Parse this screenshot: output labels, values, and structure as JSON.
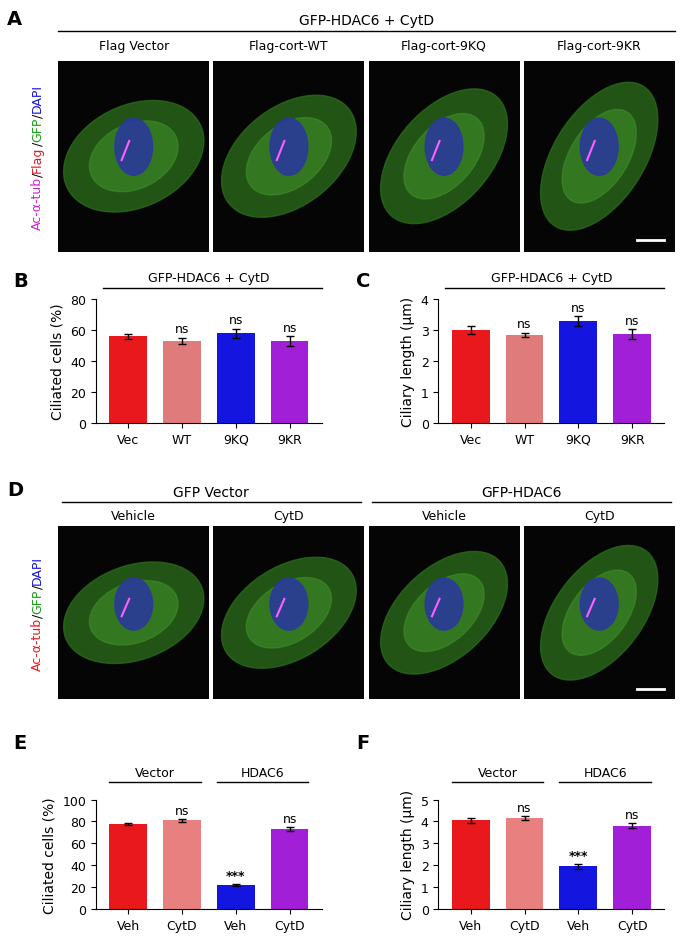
{
  "chart_data": [
    {
      "type": "bar",
      "panel_label": "B",
      "title": "GFP-HDAC6 + CytD",
      "categories": [
        "Vec",
        "WT",
        "9KQ",
        "9KR"
      ],
      "values": [
        56,
        53,
        58,
        53
      ],
      "error": [
        1.5,
        2,
        3,
        3
      ],
      "colors": [
        "#e8181d",
        "#e07b7b",
        "#1515e0",
        "#a21fd8"
      ],
      "y_label": "Ciliated cells (%)",
      "ylim": [
        0,
        80
      ],
      "yticks": [
        0,
        20,
        40,
        60,
        80
      ],
      "annotations": [
        null,
        "ns",
        "ns",
        "ns"
      ]
    },
    {
      "type": "bar",
      "panel_label": "C",
      "title": "GFP-HDAC6 + CytD",
      "categories": [
        "Vec",
        "WT",
        "9KQ",
        "9KR"
      ],
      "values": [
        3.0,
        2.85,
        3.3,
        2.88
      ],
      "error": [
        0.12,
        0.07,
        0.15,
        0.15
      ],
      "colors": [
        "#e8181d",
        "#e07b7b",
        "#1515e0",
        "#a21fd8"
      ],
      "y_label": "Ciliary length (μm)",
      "ylim": [
        0,
        4
      ],
      "yticks": [
        0,
        1,
        2,
        3,
        4
      ],
      "annotations": [
        null,
        "ns",
        "ns",
        "ns"
      ]
    },
    {
      "type": "bar",
      "panel_label": "E",
      "categories": [
        "Veh",
        "CytD",
        "Veh",
        "CytD"
      ],
      "values": [
        78,
        81,
        22,
        73
      ],
      "error": [
        1,
        1.5,
        1,
        1.5
      ],
      "colors": [
        "#e8181d",
        "#e88080",
        "#1515e0",
        "#a21fd8"
      ],
      "y_label": "Ciliated cells (%)",
      "ylim": [
        0,
        100
      ],
      "yticks": [
        0,
        20,
        40,
        60,
        80,
        100
      ],
      "annotations": [
        null,
        "ns",
        "***",
        "ns"
      ],
      "groups": [
        {
          "label": "Vector",
          "members": [
            0,
            1
          ]
        },
        {
          "label": "HDAC6",
          "members": [
            2,
            3
          ]
        }
      ]
    },
    {
      "type": "bar",
      "panel_label": "F",
      "categories": [
        "Veh",
        "CytD",
        "Veh",
        "CytD"
      ],
      "values": [
        4.05,
        4.15,
        1.95,
        3.8
      ],
      "error": [
        0.1,
        0.1,
        0.1,
        0.12
      ],
      "colors": [
        "#e8181d",
        "#e88080",
        "#1515e0",
        "#a21fd8"
      ],
      "y_label": "Ciliary length (μm)",
      "ylim": [
        0,
        5
      ],
      "yticks": [
        0,
        1,
        2,
        3,
        4,
        5
      ],
      "annotations": [
        null,
        "ns",
        "***",
        "ns"
      ],
      "groups": [
        {
          "label": "Vector",
          "members": [
            0,
            1
          ]
        },
        {
          "label": "HDAC6",
          "members": [
            2,
            3
          ]
        }
      ]
    }
  ],
  "image_panels": [
    {
      "panel_label": "A",
      "title": "GFP-HDAC6 + CytD",
      "stain_label": [
        {
          "text": "Ac-α-tub",
          "color": "#d020d0"
        },
        {
          "text": "/",
          "color": "#000000"
        },
        {
          "text": "Flag",
          "color": "#e8181d"
        },
        {
          "text": "/",
          "color": "#000000"
        },
        {
          "text": "GFP",
          "color": "#1a9a1a"
        },
        {
          "text": "/",
          "color": "#000000"
        },
        {
          "text": "DAPI",
          "color": "#1515e0"
        }
      ],
      "columns": [
        "Flag Vector",
        "Flag-cort-WT",
        "Flag-cort-9KQ",
        "Flag-cort-9KR"
      ]
    },
    {
      "panel_label": "D",
      "stain_label": [
        {
          "text": "Ac-α-tub",
          "color": "#e8181d"
        },
        {
          "text": "/",
          "color": "#000000"
        },
        {
          "text": "GFP",
          "color": "#1a9a1a"
        },
        {
          "text": "/",
          "color": "#000000"
        },
        {
          "text": "DAPI",
          "color": "#1515e0"
        }
      ],
      "groups": [
        {
          "label": "GFP Vector",
          "columns": [
            "Vehicle",
            "CytD"
          ]
        },
        {
          "label": "GFP-HDAC6",
          "columns": [
            "Vehicle",
            "CytD"
          ]
        }
      ]
    }
  ]
}
